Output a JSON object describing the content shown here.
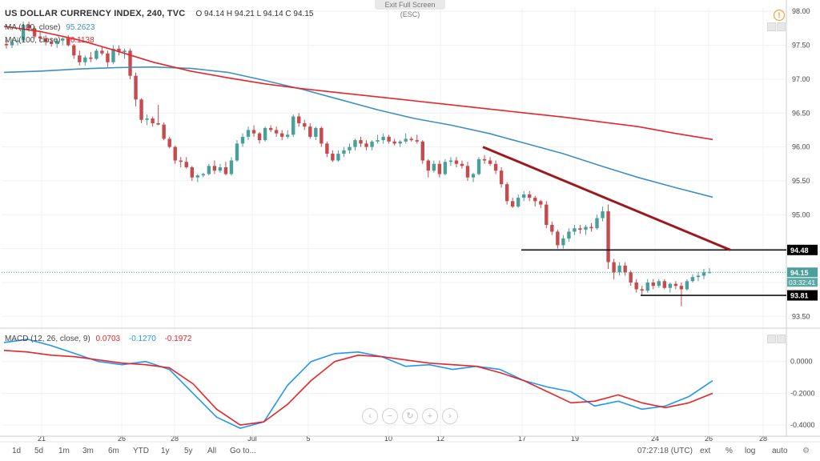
{
  "header": {
    "title": "US DOLLAR CURRENCY INDEX, 240, TVC",
    "ohlc": "O 94.14  H 94.21  L 94.14  C 94.15"
  },
  "exit_fullscreen": "Exit Full Screen (ESC)",
  "legends": {
    "ma1": {
      "name": "MA (100, close)",
      "value": "95.2623",
      "color": "#3d8fc2"
    },
    "ma2": {
      "name": "MA (100, close)",
      "value": "96.1138",
      "color": "#e5262a"
    },
    "macd": {
      "name": "MACD (12, 26, close, 9)",
      "hist": "0.0703",
      "macd": "-0.1270",
      "signal": "-0.1972"
    }
  },
  "price_labels": {
    "current": "94.15",
    "countdown": "03:32:41",
    "level_high": "94.48",
    "level_low": "93.81"
  },
  "bottom_bar": {
    "timeframes": [
      "1d",
      "5d",
      "1m",
      "3m",
      "6m",
      "YTD",
      "1y",
      "5y",
      "All",
      "Go to..."
    ],
    "clock": "07:27:18 (UTC)",
    "options": [
      "ext",
      "%",
      "log",
      "auto"
    ]
  },
  "colors": {
    "up": "#4a9f9a",
    "down": "#c44b4e",
    "trend": "#9b1b1f",
    "grid": "#eef0f3"
  },
  "chart_data": {
    "type": "candlestick",
    "title": "US DOLLAR CURRENCY INDEX, 240, TVC",
    "y_ticks": [
      "98.00",
      "97.50",
      "97.00",
      "96.50",
      "96.00",
      "95.50",
      "95.00",
      "94.50",
      "94.00",
      "93.50"
    ],
    "ylim": [
      93.35,
      98.05
    ],
    "x_ticks": [
      "21",
      "26",
      "28",
      "Jul",
      "5",
      "10",
      "12",
      "17",
      "19",
      "24",
      "26",
      "28"
    ],
    "macd_y_ticks": [
      "0.0000",
      "-0.2000",
      "-0.4000"
    ],
    "macd_ylim": [
      -0.47,
      0.2
    ],
    "candles": [
      {
        "o": 97.52,
        "h": 97.58,
        "l": 97.45,
        "c": 97.5
      },
      {
        "o": 97.5,
        "h": 97.6,
        "l": 97.46,
        "c": 97.55
      },
      {
        "o": 97.55,
        "h": 97.62,
        "l": 97.5,
        "c": 97.57
      },
      {
        "o": 97.57,
        "h": 97.85,
        "l": 97.55,
        "c": 97.8
      },
      {
        "o": 97.8,
        "h": 97.85,
        "l": 97.7,
        "c": 97.75
      },
      {
        "o": 97.75,
        "h": 97.78,
        "l": 97.6,
        "c": 97.63
      },
      {
        "o": 97.63,
        "h": 97.7,
        "l": 97.55,
        "c": 97.6
      },
      {
        "o": 97.6,
        "h": 97.65,
        "l": 97.5,
        "c": 97.55
      },
      {
        "o": 97.55,
        "h": 97.6,
        "l": 97.48,
        "c": 97.52
      },
      {
        "o": 97.52,
        "h": 97.6,
        "l": 97.46,
        "c": 97.57
      },
      {
        "o": 97.57,
        "h": 97.62,
        "l": 97.5,
        "c": 97.6
      },
      {
        "o": 97.6,
        "h": 97.65,
        "l": 97.48,
        "c": 97.5
      },
      {
        "o": 97.5,
        "h": 97.52,
        "l": 97.3,
        "c": 97.35
      },
      {
        "o": 97.35,
        "h": 97.42,
        "l": 97.2,
        "c": 97.25
      },
      {
        "o": 97.25,
        "h": 97.35,
        "l": 97.2,
        "c": 97.32
      },
      {
        "o": 97.32,
        "h": 97.4,
        "l": 97.25,
        "c": 97.3
      },
      {
        "o": 97.3,
        "h": 97.45,
        "l": 97.28,
        "c": 97.42
      },
      {
        "o": 97.42,
        "h": 97.48,
        "l": 97.35,
        "c": 97.38
      },
      {
        "o": 97.38,
        "h": 97.42,
        "l": 97.18,
        "c": 97.25
      },
      {
        "o": 97.25,
        "h": 97.5,
        "l": 97.22,
        "c": 97.45
      },
      {
        "o": 97.45,
        "h": 97.5,
        "l": 97.35,
        "c": 97.4
      },
      {
        "o": 97.4,
        "h": 97.45,
        "l": 97.3,
        "c": 97.42
      },
      {
        "o": 97.42,
        "h": 97.45,
        "l": 97.0,
        "c": 97.05
      },
      {
        "o": 97.05,
        "h": 97.1,
        "l": 96.6,
        "c": 96.7
      },
      {
        "o": 96.7,
        "h": 96.72,
        "l": 96.35,
        "c": 96.4
      },
      {
        "o": 96.4,
        "h": 96.48,
        "l": 96.32,
        "c": 96.42
      },
      {
        "o": 96.42,
        "h": 96.45,
        "l": 96.3,
        "c": 96.35
      },
      {
        "o": 96.35,
        "h": 96.62,
        "l": 96.32,
        "c": 96.33
      },
      {
        "o": 96.33,
        "h": 96.36,
        "l": 96.1,
        "c": 96.12
      },
      {
        "o": 96.12,
        "h": 96.15,
        "l": 95.98,
        "c": 96.0
      },
      {
        "o": 96.0,
        "h": 96.02,
        "l": 95.75,
        "c": 95.8
      },
      {
        "o": 95.8,
        "h": 95.85,
        "l": 95.7,
        "c": 95.78
      },
      {
        "o": 95.78,
        "h": 95.85,
        "l": 95.68,
        "c": 95.7
      },
      {
        "o": 95.7,
        "h": 95.72,
        "l": 95.5,
        "c": 95.55
      },
      {
        "o": 95.55,
        "h": 95.6,
        "l": 95.48,
        "c": 95.58
      },
      {
        "o": 95.58,
        "h": 95.62,
        "l": 95.55,
        "c": 95.6
      },
      {
        "o": 95.6,
        "h": 95.75,
        "l": 95.58,
        "c": 95.72
      },
      {
        "o": 95.72,
        "h": 95.8,
        "l": 95.6,
        "c": 95.65
      },
      {
        "o": 95.65,
        "h": 95.75,
        "l": 95.62,
        "c": 95.7
      },
      {
        "o": 95.7,
        "h": 95.78,
        "l": 95.58,
        "c": 95.6
      },
      {
        "o": 95.6,
        "h": 95.85,
        "l": 95.58,
        "c": 95.8
      },
      {
        "o": 95.8,
        "h": 96.1,
        "l": 95.78,
        "c": 96.05
      },
      {
        "o": 96.05,
        "h": 96.2,
        "l": 96.0,
        "c": 96.15
      },
      {
        "o": 96.15,
        "h": 96.3,
        "l": 96.1,
        "c": 96.25
      },
      {
        "o": 96.25,
        "h": 96.32,
        "l": 96.15,
        "c": 96.2
      },
      {
        "o": 96.2,
        "h": 96.22,
        "l": 96.05,
        "c": 96.1
      },
      {
        "o": 96.1,
        "h": 96.3,
        "l": 96.08,
        "c": 96.28
      },
      {
        "o": 96.28,
        "h": 96.32,
        "l": 96.22,
        "c": 96.25
      },
      {
        "o": 96.25,
        "h": 96.3,
        "l": 96.15,
        "c": 96.2
      },
      {
        "o": 96.2,
        "h": 96.25,
        "l": 96.1,
        "c": 96.15
      },
      {
        "o": 96.15,
        "h": 96.25,
        "l": 96.12,
        "c": 96.18
      },
      {
        "o": 96.18,
        "h": 96.48,
        "l": 96.15,
        "c": 96.45
      },
      {
        "o": 96.45,
        "h": 96.5,
        "l": 96.3,
        "c": 96.35
      },
      {
        "o": 96.35,
        "h": 96.4,
        "l": 96.25,
        "c": 96.3
      },
      {
        "o": 96.3,
        "h": 96.35,
        "l": 96.12,
        "c": 96.15
      },
      {
        "o": 96.15,
        "h": 96.3,
        "l": 96.1,
        "c": 96.28
      },
      {
        "o": 96.28,
        "h": 96.3,
        "l": 96.0,
        "c": 96.05
      },
      {
        "o": 96.05,
        "h": 96.08,
        "l": 95.85,
        "c": 95.9
      },
      {
        "o": 95.9,
        "h": 95.95,
        "l": 95.78,
        "c": 95.8
      },
      {
        "o": 95.8,
        "h": 95.95,
        "l": 95.78,
        "c": 95.9
      },
      {
        "o": 95.9,
        "h": 96.0,
        "l": 95.85,
        "c": 95.95
      },
      {
        "o": 95.95,
        "h": 96.05,
        "l": 95.9,
        "c": 96.0
      },
      {
        "o": 96.0,
        "h": 96.12,
        "l": 95.95,
        "c": 96.1
      },
      {
        "o": 96.1,
        "h": 96.15,
        "l": 96.0,
        "c": 96.05
      },
      {
        "o": 96.05,
        "h": 96.1,
        "l": 95.95,
        "c": 96.0
      },
      {
        "o": 96.0,
        "h": 96.1,
        "l": 95.95,
        "c": 96.08
      },
      {
        "o": 96.08,
        "h": 96.18,
        "l": 96.05,
        "c": 96.1
      },
      {
        "o": 96.1,
        "h": 96.2,
        "l": 96.05,
        "c": 96.15
      },
      {
        "o": 96.15,
        "h": 96.18,
        "l": 96.05,
        "c": 96.08
      },
      {
        "o": 96.08,
        "h": 96.12,
        "l": 96.02,
        "c": 96.05
      },
      {
        "o": 96.05,
        "h": 96.1,
        "l": 96.0,
        "c": 96.08
      },
      {
        "o": 96.08,
        "h": 96.2,
        "l": 96.05,
        "c": 96.12
      },
      {
        "o": 96.12,
        "h": 96.15,
        "l": 96.08,
        "c": 96.1
      },
      {
        "o": 96.1,
        "h": 96.18,
        "l": 96.05,
        "c": 96.08
      },
      {
        "o": 96.08,
        "h": 96.1,
        "l": 95.75,
        "c": 95.8
      },
      {
        "o": 95.8,
        "h": 95.82,
        "l": 95.55,
        "c": 95.65
      },
      {
        "o": 95.65,
        "h": 95.8,
        "l": 95.62,
        "c": 95.75
      },
      {
        "o": 95.75,
        "h": 95.8,
        "l": 95.55,
        "c": 95.6
      },
      {
        "o": 95.6,
        "h": 95.82,
        "l": 95.58,
        "c": 95.78
      },
      {
        "o": 95.78,
        "h": 95.85,
        "l": 95.72,
        "c": 95.8
      },
      {
        "o": 95.8,
        "h": 95.85,
        "l": 95.7,
        "c": 95.75
      },
      {
        "o": 95.75,
        "h": 95.8,
        "l": 95.68,
        "c": 95.72
      },
      {
        "o": 95.72,
        "h": 95.78,
        "l": 95.5,
        "c": 95.55
      },
      {
        "o": 95.55,
        "h": 95.62,
        "l": 95.48,
        "c": 95.6
      },
      {
        "o": 95.6,
        "h": 95.85,
        "l": 95.58,
        "c": 95.82
      },
      {
        "o": 95.82,
        "h": 95.88,
        "l": 95.75,
        "c": 95.8
      },
      {
        "o": 95.8,
        "h": 95.85,
        "l": 95.72,
        "c": 95.75
      },
      {
        "o": 95.75,
        "h": 95.8,
        "l": 95.6,
        "c": 95.65
      },
      {
        "o": 95.65,
        "h": 95.7,
        "l": 95.4,
        "c": 95.45
      },
      {
        "o": 95.45,
        "h": 95.48,
        "l": 95.15,
        "c": 95.2
      },
      {
        "o": 95.2,
        "h": 95.25,
        "l": 95.1,
        "c": 95.12
      },
      {
        "o": 95.12,
        "h": 95.3,
        "l": 95.1,
        "c": 95.25
      },
      {
        "o": 95.25,
        "h": 95.35,
        "l": 95.2,
        "c": 95.3
      },
      {
        "o": 95.3,
        "h": 95.35,
        "l": 95.2,
        "c": 95.25
      },
      {
        "o": 95.25,
        "h": 95.28,
        "l": 95.12,
        "c": 95.2
      },
      {
        "o": 95.2,
        "h": 95.22,
        "l": 95.1,
        "c": 95.15
      },
      {
        "o": 95.15,
        "h": 95.2,
        "l": 94.8,
        "c": 94.85
      },
      {
        "o": 94.85,
        "h": 94.9,
        "l": 94.7,
        "c": 94.75
      },
      {
        "o": 94.75,
        "h": 94.78,
        "l": 94.5,
        "c": 94.55
      },
      {
        "o": 94.55,
        "h": 94.7,
        "l": 94.5,
        "c": 94.65
      },
      {
        "o": 94.65,
        "h": 94.8,
        "l": 94.6,
        "c": 94.75
      },
      {
        "o": 94.75,
        "h": 94.85,
        "l": 94.7,
        "c": 94.8
      },
      {
        "o": 94.8,
        "h": 94.85,
        "l": 94.72,
        "c": 94.78
      },
      {
        "o": 94.78,
        "h": 94.85,
        "l": 94.7,
        "c": 94.82
      },
      {
        "o": 94.82,
        "h": 94.88,
        "l": 94.75,
        "c": 94.8
      },
      {
        "o": 94.8,
        "h": 95.0,
        "l": 94.78,
        "c": 94.95
      },
      {
        "o": 94.95,
        "h": 95.12,
        "l": 94.9,
        "c": 95.05
      },
      {
        "o": 95.05,
        "h": 95.15,
        "l": 94.2,
        "c": 94.3
      },
      {
        "o": 94.3,
        "h": 94.35,
        "l": 94.05,
        "c": 94.15
      },
      {
        "o": 94.15,
        "h": 94.3,
        "l": 94.1,
        "c": 94.25
      },
      {
        "o": 94.25,
        "h": 94.3,
        "l": 94.1,
        "c": 94.15
      },
      {
        "o": 94.15,
        "h": 94.18,
        "l": 93.95,
        "c": 94.0
      },
      {
        "o": 94.0,
        "h": 94.05,
        "l": 93.85,
        "c": 93.9
      },
      {
        "o": 93.9,
        "h": 93.95,
        "l": 93.82,
        "c": 93.88
      },
      {
        "o": 93.88,
        "h": 94.05,
        "l": 93.85,
        "c": 94.0
      },
      {
        "o": 94.0,
        "h": 94.05,
        "l": 93.9,
        "c": 93.95
      },
      {
        "o": 93.95,
        "h": 94.05,
        "l": 93.92,
        "c": 94.02
      },
      {
        "o": 94.02,
        "h": 94.05,
        "l": 93.9,
        "c": 93.92
      },
      {
        "o": 93.92,
        "h": 94.0,
        "l": 93.85,
        "c": 93.98
      },
      {
        "o": 93.98,
        "h": 94.02,
        "l": 93.9,
        "c": 93.95
      },
      {
        "o": 93.95,
        "h": 94.0,
        "l": 93.65,
        "c": 93.9
      },
      {
        "o": 93.9,
        "h": 94.05,
        "l": 93.88,
        "c": 94.02
      },
      {
        "o": 94.02,
        "h": 94.12,
        "l": 94.0,
        "c": 94.08
      },
      {
        "o": 94.08,
        "h": 94.15,
        "l": 94.02,
        "c": 94.1
      },
      {
        "o": 94.1,
        "h": 94.2,
        "l": 94.05,
        "c": 94.15
      },
      {
        "o": 94.14,
        "h": 94.21,
        "l": 94.14,
        "c": 94.15
      }
    ],
    "ma_blue": [
      97.1,
      97.12,
      97.15,
      97.17,
      97.18,
      97.16,
      97.1,
      96.98,
      96.85,
      96.7,
      96.55,
      96.42,
      96.32,
      96.2,
      96.05,
      95.9,
      95.72,
      95.55,
      95.4,
      95.26
    ],
    "ma_red": [
      97.78,
      97.7,
      97.58,
      97.42,
      97.25,
      97.12,
      97.02,
      96.93,
      96.86,
      96.8,
      96.74,
      96.68,
      96.62,
      96.56,
      96.5,
      96.44,
      96.37,
      96.3,
      96.2,
      96.11
    ],
    "macd_line": [
      0.12,
      0.14,
      0.1,
      0.05,
      0.0,
      -0.02,
      0.0,
      -0.05,
      -0.2,
      -0.35,
      -0.42,
      -0.38,
      -0.15,
      0.0,
      0.05,
      0.06,
      0.03,
      -0.03,
      -0.02,
      -0.05,
      -0.03,
      -0.05,
      -0.12,
      -0.16,
      -0.19,
      -0.28,
      -0.25,
      -0.3,
      -0.28,
      -0.22,
      -0.12
    ],
    "signal_line": [
      0.07,
      0.06,
      0.04,
      0.03,
      0.01,
      -0.01,
      -0.02,
      -0.04,
      -0.14,
      -0.3,
      -0.4,
      -0.38,
      -0.27,
      -0.12,
      0.0,
      0.04,
      0.03,
      0.01,
      -0.01,
      -0.02,
      -0.03,
      -0.07,
      -0.12,
      -0.19,
      -0.26,
      -0.25,
      -0.21,
      -0.26,
      -0.29,
      -0.26,
      -0.2
    ],
    "levels": [
      94.48,
      93.81
    ],
    "current_price": 94.15,
    "trendline": [
      96.0,
      94.48
    ]
  }
}
